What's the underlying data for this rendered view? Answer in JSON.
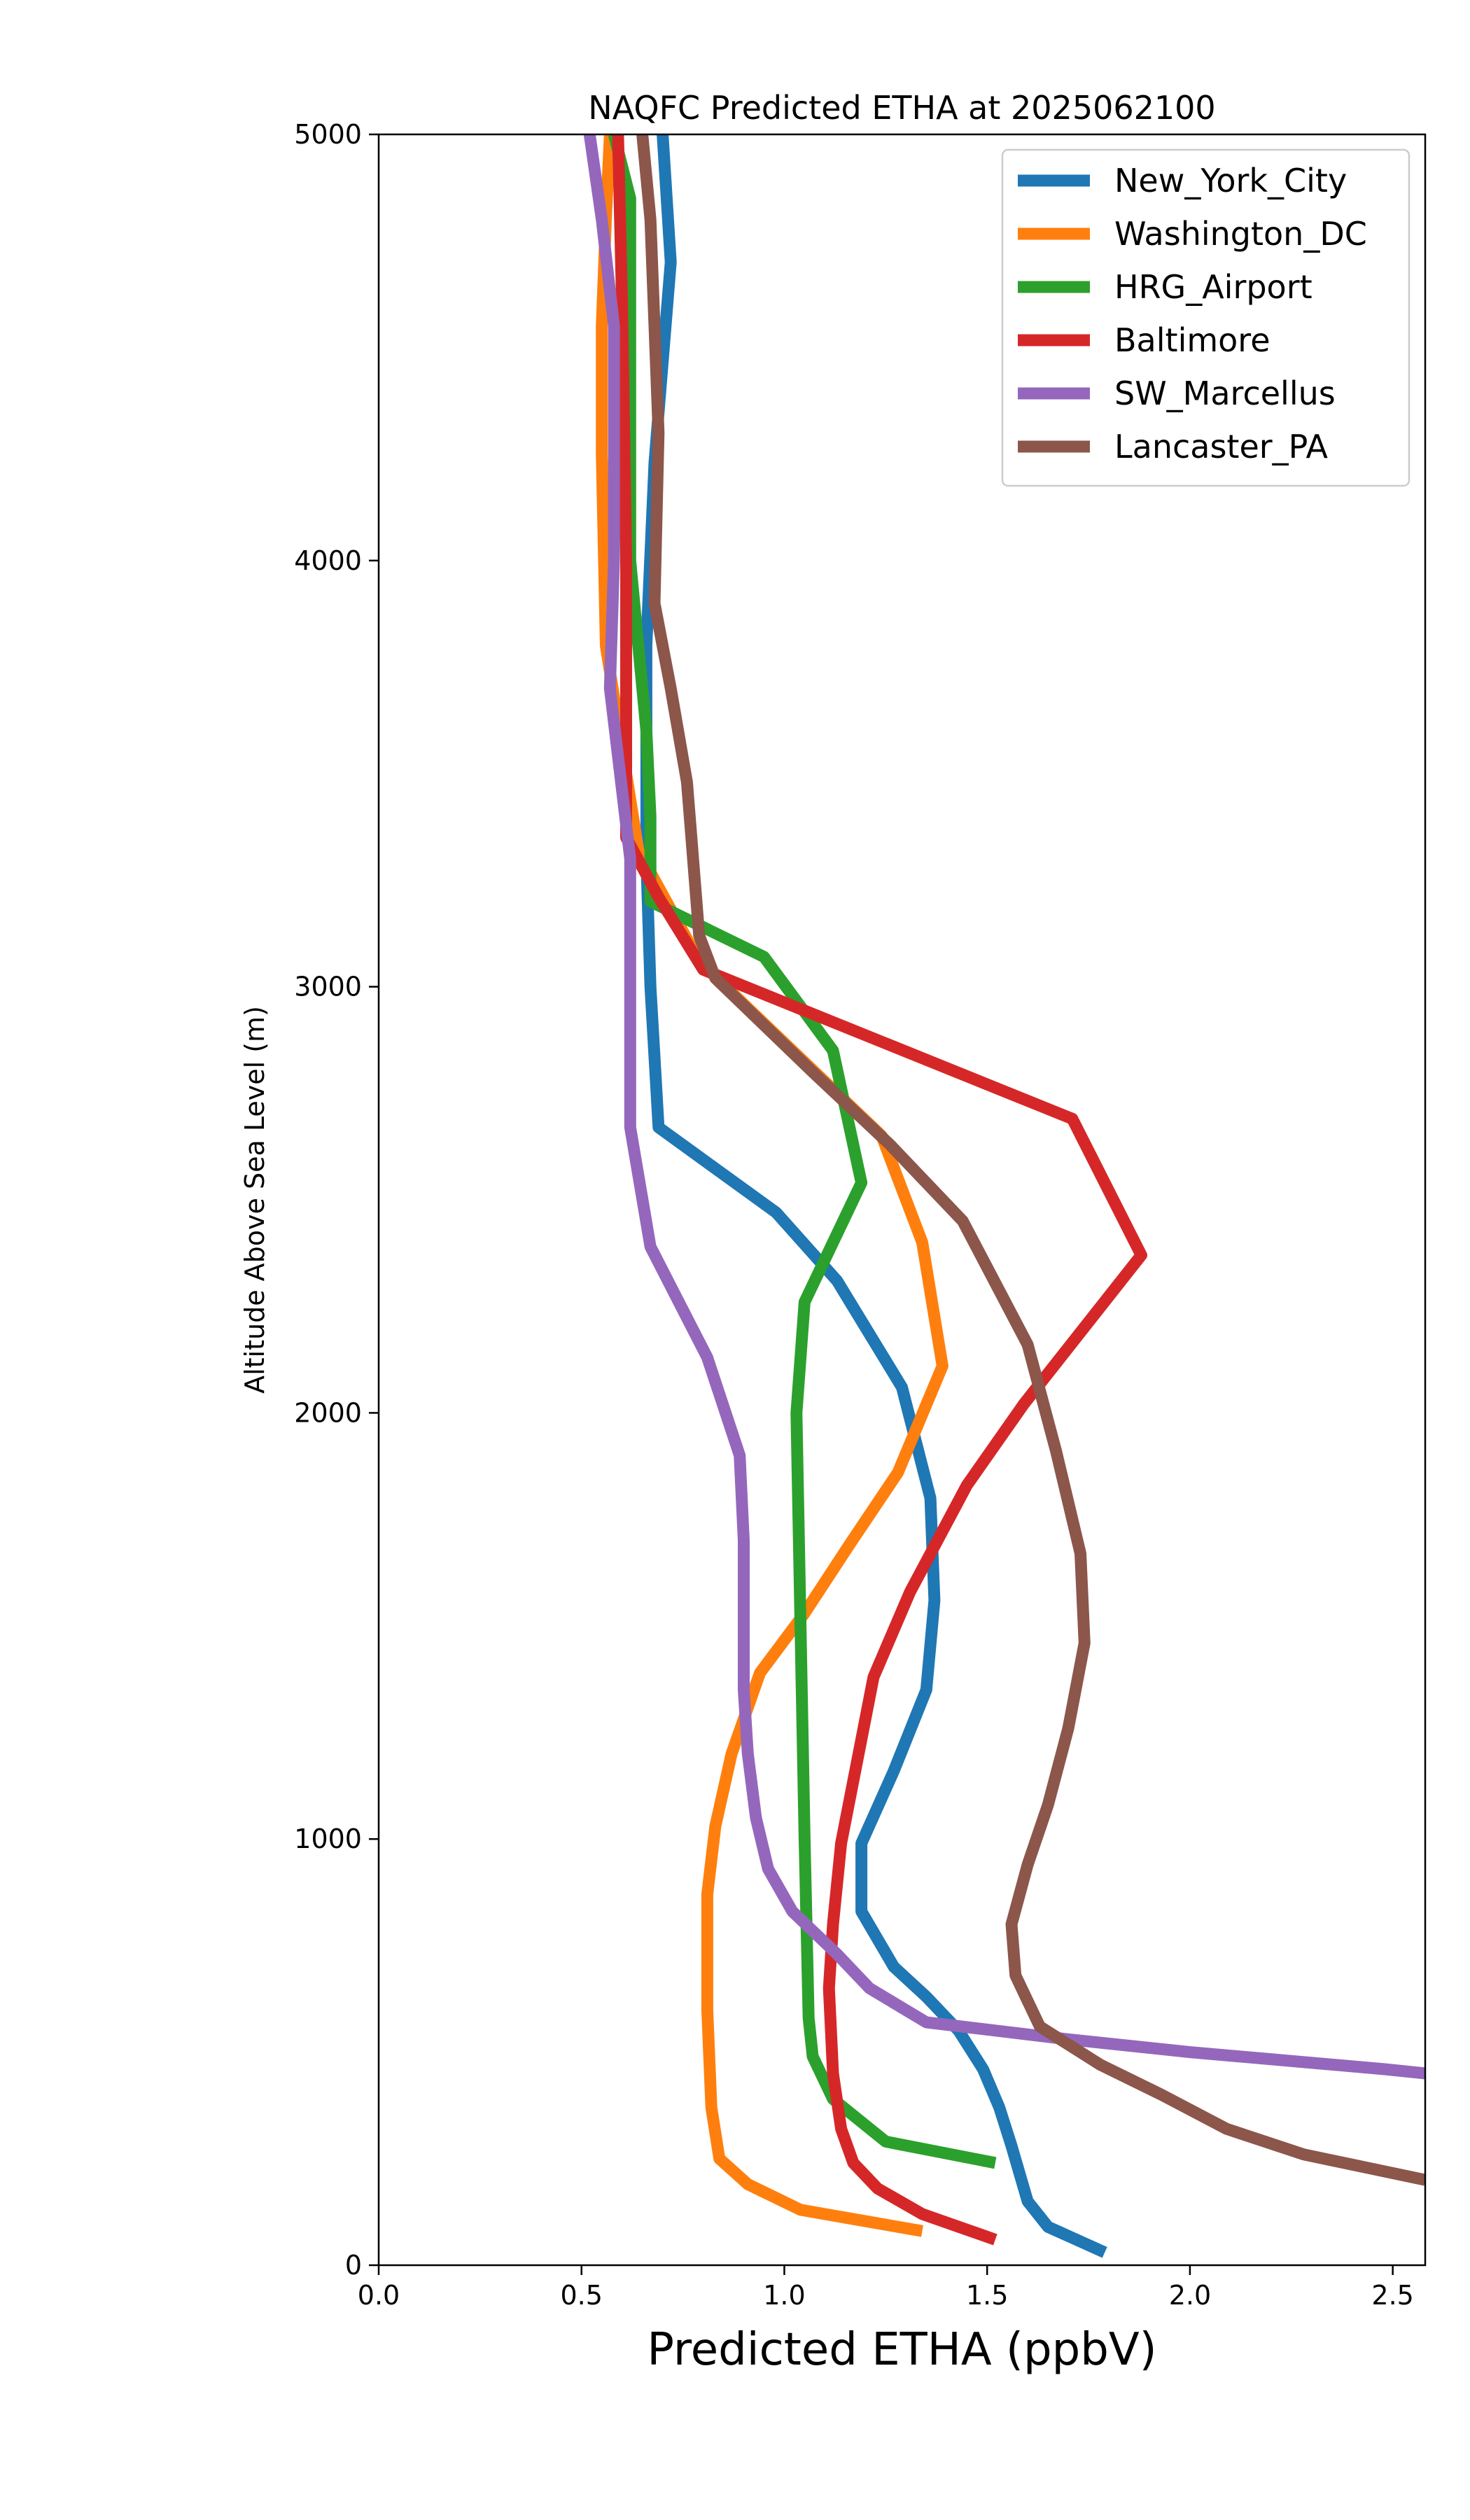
{
  "chart_data": {
    "type": "line",
    "title": "NAQFC Predicted ETHA at 2025062100",
    "xlabel": "Predicted ETHA (ppbV)",
    "ylabel": "Altitude Above Sea Level (m)",
    "xlim": [
      0,
      2.58
    ],
    "ylim": [
      0,
      5000
    ],
    "xticks": [
      "0.0",
      "0.5",
      "1.0",
      "1.5",
      "2.0",
      "2.5"
    ],
    "yticks": [
      "0",
      "1000",
      "2000",
      "3000",
      "4000",
      "5000"
    ],
    "grid": false,
    "legend_position": "top-right",
    "series": [
      {
        "name": "New_York_City",
        "color": "#1f77b4",
        "points": [
          [
            1.79,
            30
          ],
          [
            1.65,
            90
          ],
          [
            1.6,
            150
          ],
          [
            1.56,
            280
          ],
          [
            1.53,
            370
          ],
          [
            1.49,
            460
          ],
          [
            1.43,
            550
          ],
          [
            1.35,
            630
          ],
          [
            1.27,
            700
          ],
          [
            1.19,
            830
          ],
          [
            1.19,
            990
          ],
          [
            1.27,
            1160
          ],
          [
            1.35,
            1350
          ],
          [
            1.37,
            1560
          ],
          [
            1.36,
            1800
          ],
          [
            1.29,
            2060
          ],
          [
            1.13,
            2310
          ],
          [
            0.98,
            2470
          ],
          [
            0.69,
            2670
          ],
          [
            0.67,
            3000
          ],
          [
            0.66,
            3300
          ],
          [
            0.66,
            3800
          ],
          [
            0.68,
            4230
          ],
          [
            0.72,
            4700
          ],
          [
            0.7,
            5000
          ]
        ]
      },
      {
        "name": "Washington_DC",
        "color": "#ff7f0e",
        "points": [
          [
            1.34,
            80
          ],
          [
            1.04,
            130
          ],
          [
            0.91,
            190
          ],
          [
            0.84,
            250
          ],
          [
            0.82,
            370
          ],
          [
            0.81,
            600
          ],
          [
            0.81,
            870
          ],
          [
            0.83,
            1030
          ],
          [
            0.87,
            1200
          ],
          [
            0.94,
            1390
          ],
          [
            1.05,
            1530
          ],
          [
            1.16,
            1690
          ],
          [
            1.28,
            1860
          ],
          [
            1.39,
            2110
          ],
          [
            1.34,
            2400
          ],
          [
            1.24,
            2650
          ],
          [
            0.91,
            2950
          ],
          [
            0.79,
            3060
          ],
          [
            0.64,
            3320
          ],
          [
            0.56,
            3800
          ],
          [
            0.55,
            4250
          ],
          [
            0.55,
            4550
          ],
          [
            0.56,
            4800
          ],
          [
            0.57,
            5000
          ]
        ]
      },
      {
        "name": "HRG_Airport",
        "color": "#2ca02c",
        "points": [
          [
            1.52,
            240
          ],
          [
            1.25,
            290
          ],
          [
            1.12,
            390
          ],
          [
            1.07,
            490
          ],
          [
            1.06,
            580
          ],
          [
            1.05,
            1000
          ],
          [
            1.04,
            1500
          ],
          [
            1.03,
            2000
          ],
          [
            1.05,
            2260
          ],
          [
            1.19,
            2540
          ],
          [
            1.12,
            2850
          ],
          [
            0.95,
            3070
          ],
          [
            0.67,
            3200
          ],
          [
            0.67,
            3400
          ],
          [
            0.66,
            3600
          ],
          [
            0.62,
            4000
          ],
          [
            0.62,
            4850
          ],
          [
            0.58,
            5000
          ]
        ]
      },
      {
        "name": "Baltimore",
        "color": "#d62728",
        "points": [
          [
            1.52,
            60
          ],
          [
            1.34,
            120
          ],
          [
            1.23,
            180
          ],
          [
            1.17,
            240
          ],
          [
            1.14,
            320
          ],
          [
            1.12,
            450
          ],
          [
            1.11,
            650
          ],
          [
            1.12,
            800
          ],
          [
            1.14,
            990
          ],
          [
            1.22,
            1380
          ],
          [
            1.31,
            1580
          ],
          [
            1.45,
            1830
          ],
          [
            1.59,
            2020
          ],
          [
            1.88,
            2370
          ],
          [
            1.71,
            2690
          ],
          [
            0.8,
            3040
          ],
          [
            0.69,
            3210
          ],
          [
            0.61,
            3350
          ],
          [
            0.61,
            3600
          ],
          [
            0.61,
            4000
          ],
          [
            0.6,
            4600
          ],
          [
            0.59,
            5000
          ]
        ]
      },
      {
        "name": "SW_Marcellus",
        "color": "#9467bd",
        "points": [
          [
            2.58,
            450
          ],
          [
            2.48,
            460
          ],
          [
            2.0,
            500
          ],
          [
            1.7,
            530
          ],
          [
            1.35,
            570
          ],
          [
            1.21,
            650
          ],
          [
            1.13,
            730
          ],
          [
            1.02,
            830
          ],
          [
            0.96,
            930
          ],
          [
            0.93,
            1050
          ],
          [
            0.91,
            1200
          ],
          [
            0.9,
            1350
          ],
          [
            0.9,
            1700
          ],
          [
            0.89,
            1900
          ],
          [
            0.81,
            2130
          ],
          [
            0.67,
            2390
          ],
          [
            0.62,
            2670
          ],
          [
            0.62,
            3000
          ],
          [
            0.62,
            3300
          ],
          [
            0.57,
            3700
          ],
          [
            0.58,
            4000
          ],
          [
            0.58,
            4550
          ],
          [
            0.55,
            4800
          ],
          [
            0.52,
            5000
          ]
        ]
      },
      {
        "name": "Lancaster_PA",
        "color": "#8c564b",
        "points": [
          [
            2.58,
            200
          ],
          [
            2.28,
            260
          ],
          [
            2.09,
            320
          ],
          [
            1.93,
            400
          ],
          [
            1.78,
            470
          ],
          [
            1.63,
            560
          ],
          [
            1.57,
            680
          ],
          [
            1.56,
            800
          ],
          [
            1.6,
            940
          ],
          [
            1.65,
            1080
          ],
          [
            1.7,
            1260
          ],
          [
            1.74,
            1460
          ],
          [
            1.73,
            1670
          ],
          [
            1.67,
            1910
          ],
          [
            1.6,
            2160
          ],
          [
            1.44,
            2450
          ],
          [
            1.26,
            2630
          ],
          [
            1.07,
            2800
          ],
          [
            0.83,
            3020
          ],
          [
            0.79,
            3120
          ],
          [
            0.76,
            3480
          ],
          [
            0.72,
            3700
          ],
          [
            0.68,
            3900
          ],
          [
            0.69,
            4300
          ],
          [
            0.67,
            4800
          ],
          [
            0.65,
            5000
          ]
        ]
      }
    ]
  }
}
